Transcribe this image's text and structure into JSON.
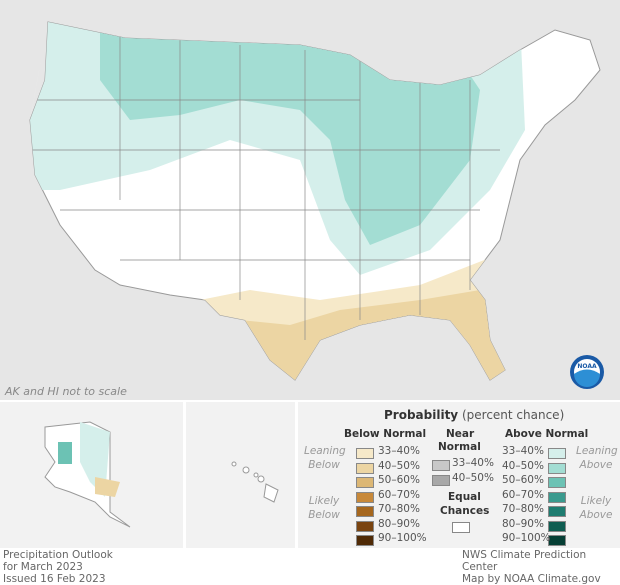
{
  "map": {
    "note": "AK and HI not to scale",
    "logo": "NOAA"
  },
  "legend": {
    "title": "Probability",
    "title_sub": "(percent chance)",
    "below": {
      "heading": "Below Normal",
      "leaning": "Leaning Below",
      "likely": "Likely Below",
      "items": [
        {
          "label": "33–40%",
          "color": "#f6e9c9"
        },
        {
          "label": "40–50%",
          "color": "#ecd5a3"
        },
        {
          "label": "50–60%",
          "color": "#dcb775"
        },
        {
          "label": "60–70%",
          "color": "#c8893a"
        },
        {
          "label": "70–80%",
          "color": "#a6671e"
        },
        {
          "label": "80–90%",
          "color": "#7a4410"
        },
        {
          "label": "90–100%",
          "color": "#4f2a06"
        }
      ]
    },
    "near": {
      "heading1": "Near",
      "heading2": "Normal",
      "items": [
        {
          "label": "33–40%",
          "color": "#c8c8c8"
        },
        {
          "label": "40–50%",
          "color": "#a8a8a8"
        }
      ]
    },
    "equal": {
      "heading1": "Equal",
      "heading2": "Chances",
      "color": "#ffffff"
    },
    "above": {
      "heading": "Above Normal",
      "leaning": "Leaning Above",
      "likely": "Likely Above",
      "items": [
        {
          "label": "33–40%",
          "color": "#d5efeb"
        },
        {
          "label": "40–50%",
          "color": "#a3ddd3"
        },
        {
          "label": "50–60%",
          "color": "#6cc2b4"
        },
        {
          "label": "60–70%",
          "color": "#3a9a8e"
        },
        {
          "label": "70–80%",
          "color": "#1e7c70"
        },
        {
          "label": "80–90%",
          "color": "#0f5e52"
        },
        {
          "label": "90–100%",
          "color": "#063f35"
        }
      ]
    }
  },
  "footer": {
    "left": [
      "Precipitation Outlook",
      "for March 2023",
      "Issued 16 Feb 2023"
    ],
    "right": [
      "NWS Climate Prediction Center",
      "Map by NOAA Climate.gov"
    ]
  }
}
